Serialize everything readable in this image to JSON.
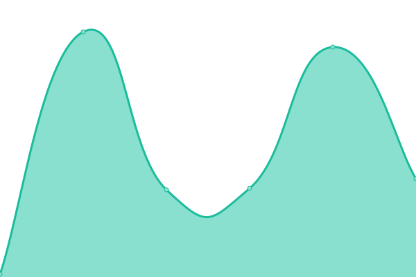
{
  "chart_data": {
    "type": "area",
    "title": "",
    "xlabel": "",
    "ylabel": "",
    "x": [
      0,
      1,
      2,
      3,
      4,
      5
    ],
    "values": [
      4,
      354,
      126,
      128,
      332,
      142
    ],
    "ylim": [
      0,
      400
    ],
    "grid": false,
    "axes_visible": false,
    "smooth": true,
    "colors": {
      "line": "#1abc9c",
      "fill": "#89e0cf",
      "marker_fill": "#89e0cf"
    }
  }
}
